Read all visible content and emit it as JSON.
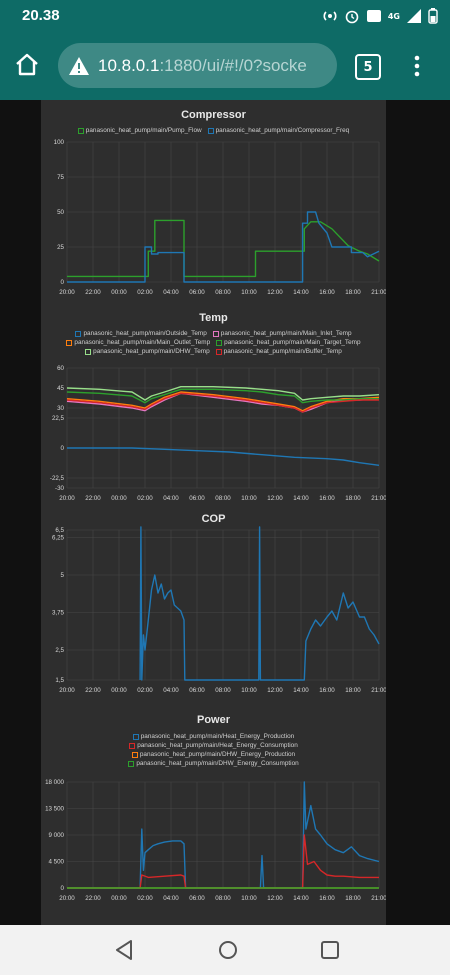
{
  "status_bar": {
    "time": "20.38",
    "network_label": "4G"
  },
  "browser": {
    "url_host": "10.8.0.1",
    "url_rest": ":1880/ui/#!/0?socke",
    "tab_count": "5"
  },
  "colors": {
    "topbar": "#0e6b66",
    "panel": "#2e2e2e",
    "green": "#2ca02c",
    "blue": "#1f77b4",
    "red": "#d62728",
    "orange": "#ff7f0e",
    "light_green": "#98df8a",
    "pink": "#e377c2"
  },
  "chart_data": [
    {
      "type": "line",
      "title": "Compressor",
      "x_ticks": [
        "20:00",
        "22:00",
        "00:00",
        "02:00",
        "04:00",
        "06:00",
        "08:00",
        "10:00",
        "12:00",
        "14:00",
        "16:00",
        "18:00",
        "21:00"
      ],
      "y_ticks": [
        "100",
        "75",
        "50",
        "25",
        "0"
      ],
      "ylim": [
        0,
        100
      ],
      "grid": true,
      "legend_position": "top",
      "series": [
        {
          "name": "panasonic_heat_pump/main/Pump_Flow",
          "color": "#2ca02c",
          "x": [
            0,
            5,
            5,
            5.4,
            5.4,
            7.2,
            7.2,
            11.6,
            11.6,
            14.6,
            14.6,
            15.0,
            15.6,
            16.3,
            17.3,
            18.0,
            18.5,
            19.2
          ],
          "y": [
            4,
            4,
            22,
            22,
            44,
            44,
            4,
            4,
            22,
            22,
            38,
            43,
            43,
            38,
            26,
            22,
            20,
            15
          ]
        },
        {
          "name": "panasonic_heat_pump/main/Compressor_Freq",
          "color": "#1f77b4",
          "x": [
            0,
            4.8,
            4.8,
            5.2,
            5.2,
            5.6,
            5.6,
            7.2,
            7.2,
            11.6,
            11.6,
            14.5,
            14.5,
            14.8,
            14.8,
            15.3,
            15.5,
            16.0,
            16.3,
            17.5,
            17.5,
            18.2,
            18.5,
            19.2
          ],
          "y": [
            0,
            0,
            25,
            25,
            20,
            20,
            21,
            21,
            0,
            0,
            0,
            0,
            42,
            42,
            50,
            50,
            42,
            35,
            25,
            25,
            21,
            21,
            18,
            22
          ]
        }
      ]
    },
    {
      "type": "line",
      "title": "Temp",
      "x_ticks": [
        "20:00",
        "22:00",
        "00:00",
        "02:00",
        "04:00",
        "06:00",
        "08:00",
        "10:00",
        "12:00",
        "14:00",
        "16:00",
        "18:00",
        "21:00"
      ],
      "y_ticks": [
        "60",
        "45",
        "30",
        "22,5",
        "0",
        "-22,5",
        "-30"
      ],
      "ylim": [
        -30,
        60
      ],
      "grid": true,
      "legend_position": "top",
      "series": [
        {
          "name": "panasonic_heat_pump/main/Outside_Temp",
          "color": "#1f77b4",
          "x": [
            0,
            2,
            4,
            6,
            8,
            10,
            12,
            14,
            16,
            17,
            18,
            19.2
          ],
          "y": [
            0,
            0,
            0,
            -1,
            -2,
            -3,
            -5,
            -7,
            -8,
            -9,
            -11,
            -13
          ]
        },
        {
          "name": "panasonic_heat_pump/main/Main_Inlet_Temp",
          "color": "#e377c2",
          "x": [
            0,
            2,
            4,
            4.8,
            5.2,
            6,
            7,
            9,
            11,
            12,
            13,
            14,
            14.5,
            15,
            16,
            17,
            18,
            19.2
          ],
          "y": [
            35,
            33,
            30,
            28,
            31,
            36,
            41,
            38,
            35,
            33,
            32,
            30,
            27,
            29,
            34,
            36,
            36,
            37
          ]
        },
        {
          "name": "panasonic_heat_pump/main/Main_Outlet_Temp",
          "color": "#ff7f0e",
          "x": [
            0,
            2,
            4,
            4.8,
            5.2,
            6,
            7,
            9,
            11,
            12,
            13,
            14,
            14.5,
            15,
            16,
            17,
            18,
            19.2
          ],
          "y": [
            37,
            35,
            32,
            30,
            33,
            38,
            42,
            40,
            37,
            35,
            33,
            31,
            28,
            31,
            35,
            37,
            37,
            38
          ]
        },
        {
          "name": "panasonic_heat_pump/main/Main_Target_Temp",
          "color": "#2ca02c",
          "x": [
            0,
            2,
            4,
            4.8,
            5.2,
            6,
            7,
            9,
            11,
            12,
            13,
            14,
            14.5,
            15,
            16,
            17,
            18,
            19.2
          ],
          "y": [
            42,
            41,
            39,
            34,
            37,
            40,
            44,
            44,
            43,
            42,
            40,
            39,
            34,
            35,
            36,
            36,
            37,
            37
          ]
        },
        {
          "name": "panasonic_heat_pump/main/DHW_Temp",
          "color": "#98df8a",
          "x": [
            0,
            2,
            4,
            4.8,
            5.2,
            6,
            7,
            9,
            11,
            12,
            13,
            14,
            14.5,
            15,
            16,
            17,
            18,
            19.2
          ],
          "y": [
            45,
            44,
            42,
            36,
            39,
            42,
            46,
            46,
            45,
            44,
            43,
            41,
            36,
            37,
            38,
            39,
            39,
            40
          ]
        },
        {
          "name": "panasonic_heat_pump/main/Buffer_Temp",
          "color": "#d62728",
          "x": [
            0,
            2,
            4,
            4.8,
            5.2,
            6,
            7,
            9,
            11,
            12,
            13,
            14,
            14.5,
            15,
            16,
            17,
            18,
            19.2
          ],
          "y": [
            36,
            34,
            31,
            29,
            32,
            37,
            41,
            39,
            36,
            34,
            32,
            30,
            27,
            30,
            34,
            35,
            36,
            36
          ]
        }
      ]
    },
    {
      "type": "line",
      "title": "COP",
      "x_ticks": [
        "20:00",
        "22:00",
        "00:00",
        "02:00",
        "04:00",
        "06:00",
        "08:00",
        "10:00",
        "12:00",
        "14:00",
        "16:00",
        "18:00",
        "21:00"
      ],
      "y_ticks": [
        "6,5",
        "6,25",
        "5",
        "3,75",
        "2,5",
        "1,5"
      ],
      "ylim": [
        1.5,
        6.5
      ],
      "grid": true,
      "series": [
        {
          "name": "",
          "color": "#1f77b4",
          "x": [
            4.5,
            4.55,
            4.6,
            4.7,
            4.8,
            5.0,
            5.2,
            5.4,
            5.6,
            5.8,
            6.0,
            6.2,
            6.4,
            6.6,
            7.0,
            7.2,
            7.25,
            11.8,
            11.85,
            11.9,
            14.6,
            14.7,
            15.0,
            15.3,
            15.6,
            16.0,
            16.3,
            16.6,
            17.0,
            17.3,
            17.6,
            18.0,
            18.3,
            18.6,
            18.9,
            19.2
          ],
          "y": [
            1.5,
            6.6,
            1.5,
            3.0,
            2.5,
            3.5,
            4.5,
            5.0,
            4.4,
            4.7,
            4.2,
            4.4,
            4.5,
            4.0,
            3.8,
            3.5,
            1.5,
            1.5,
            6.6,
            1.5,
            1.5,
            2.8,
            3.2,
            3.5,
            3.3,
            3.6,
            3.8,
            3.5,
            4.4,
            3.9,
            4.1,
            3.6,
            3.6,
            3.2,
            3.0,
            2.7
          ]
        }
      ]
    },
    {
      "type": "line",
      "title": "Power",
      "x_ticks": [
        "20:00",
        "22:00",
        "00:00",
        "02:00",
        "04:00",
        "06:00",
        "08:00",
        "10:00",
        "12:00",
        "14:00",
        "16:00",
        "18:00",
        "21:00"
      ],
      "y_ticks": [
        "18 000",
        "13 500",
        "9 000",
        "4 500",
        "0"
      ],
      "ylim": [
        0,
        18000
      ],
      "grid": true,
      "legend_position": "top",
      "series": [
        {
          "name": "panasonic_heat_pump/main/Heat_Energy_Production",
          "color": "#1f77b4",
          "x": [
            0,
            4.5,
            4.6,
            4.7,
            4.8,
            5.0,
            5.3,
            5.6,
            6.0,
            6.5,
            7.0,
            7.2,
            7.3,
            11.9,
            12.0,
            12.1,
            14.5,
            14.6,
            14.7,
            15.0,
            15.3,
            15.6,
            16.0,
            16.5,
            17.0,
            17.5,
            18.0,
            18.5,
            19.2
          ],
          "y": [
            0,
            0,
            10000,
            3000,
            6000,
            6500,
            7200,
            7500,
            7800,
            8000,
            8000,
            7500,
            0,
            0,
            5500,
            0,
            0,
            18000,
            10000,
            14000,
            10000,
            9000,
            7500,
            6500,
            6000,
            7000,
            5500,
            5000,
            4500
          ]
        },
        {
          "name": "panasonic_heat_pump/main/Heat_Energy_Consumption",
          "color": "#d62728",
          "x": [
            0,
            4.5,
            4.6,
            5.0,
            6.0,
            7.0,
            7.2,
            7.3,
            14.5,
            14.6,
            14.8,
            15.2,
            15.6,
            16.0,
            16.5,
            17.0,
            18.0,
            19.2
          ],
          "y": [
            0,
            0,
            2200,
            1800,
            2000,
            2200,
            2000,
            0,
            0,
            9000,
            4000,
            4500,
            3000,
            2200,
            2000,
            2000,
            1800,
            1800
          ]
        },
        {
          "name": "panasonic_heat_pump/main/DHW_Energy_Production",
          "color": "#ff7f0e",
          "x": [
            0,
            19.2
          ],
          "y": [
            0,
            0
          ]
        },
        {
          "name": "panasonic_heat_pump/main/DHW_Energy_Consumption",
          "color": "#2ca02c",
          "x": [
            0,
            19.2
          ],
          "y": [
            0,
            0
          ]
        }
      ]
    }
  ]
}
